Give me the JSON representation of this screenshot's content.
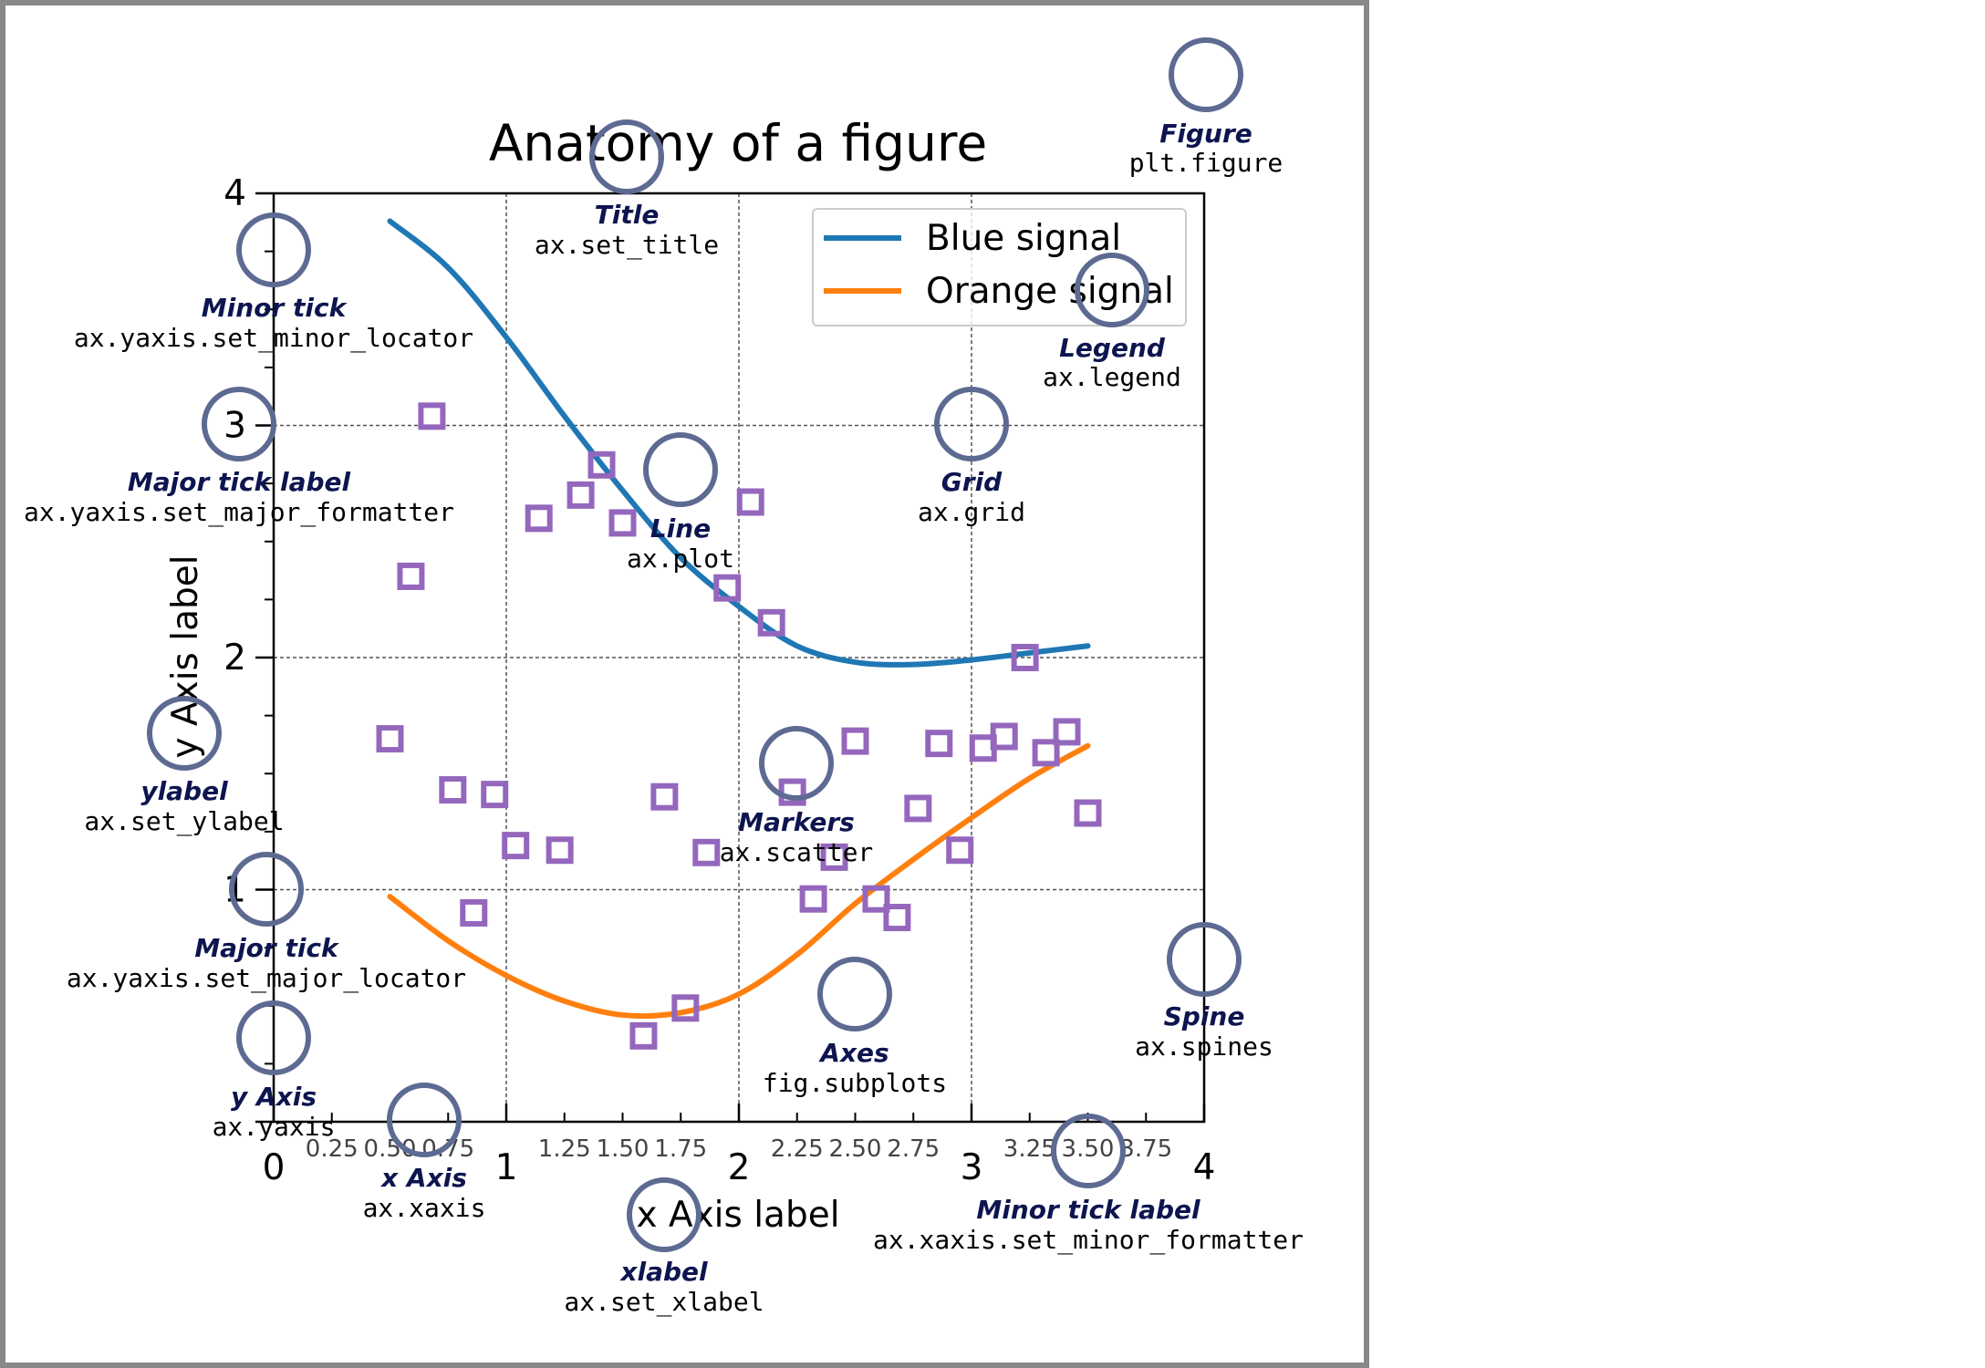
{
  "colors": {
    "blue_signal": "#1f77b4",
    "orange_signal": "#ff7f0e",
    "markers": "#9467bd",
    "annotation_circle": "#5d6a92",
    "annotation_title": "#0d1550",
    "frame_border": "#888888"
  },
  "chart_data": {
    "type": "line",
    "title": "Anatomy of a figure",
    "xlabel": "x Axis label",
    "ylabel": "y Axis label",
    "xlim": [
      0,
      4
    ],
    "ylim": [
      0,
      4
    ],
    "grid": true,
    "legend_position": "top-right",
    "major_ticks": {
      "x": [
        0,
        1,
        2,
        3,
        4
      ],
      "y": [
        0,
        1,
        2,
        3,
        4
      ],
      "x_labels": [
        "0",
        "1",
        "2",
        "3",
        "4"
      ],
      "y_labels": [
        "",
        "1",
        "2",
        "3",
        "4"
      ]
    },
    "minor_ticks": {
      "x": [
        0.25,
        0.5,
        0.75,
        1.25,
        1.5,
        1.75,
        2.25,
        2.5,
        2.75,
        3.25,
        3.5,
        3.75
      ],
      "x_labels": [
        "0.25",
        "0.50",
        "0.75",
        "1.25",
        "1.50",
        "1.75",
        "2.25",
        "2.50",
        "2.75",
        "3.25",
        "3.50",
        "3.75"
      ],
      "y": [
        0.25,
        0.5,
        0.75,
        1.25,
        1.5,
        1.75,
        2.25,
        2.5,
        2.75,
        3.25,
        3.5,
        3.75
      ]
    },
    "series": [
      {
        "name": "Blue signal",
        "kind": "line",
        "color": "#1f77b4",
        "x": [
          0.5,
          0.75,
          1.0,
          1.25,
          1.5,
          1.75,
          2.0,
          2.25,
          2.5,
          2.75,
          3.0,
          3.25,
          3.5
        ],
        "y": [
          3.88,
          3.68,
          3.38,
          3.04,
          2.72,
          2.43,
          2.22,
          2.05,
          1.98,
          1.97,
          1.99,
          2.02,
          2.05
        ]
      },
      {
        "name": "Orange signal",
        "kind": "line",
        "color": "#ff7f0e",
        "x": [
          0.5,
          0.75,
          1.0,
          1.25,
          1.5,
          1.75,
          2.0,
          2.25,
          2.5,
          2.75,
          3.0,
          3.25,
          3.5
        ],
        "y": [
          0.97,
          0.78,
          0.63,
          0.52,
          0.46,
          0.47,
          0.55,
          0.72,
          0.94,
          1.13,
          1.31,
          1.48,
          1.62
        ]
      },
      {
        "kind": "scatter",
        "marker": "square",
        "color": "#9467bd",
        "x": [
          0.5,
          0.59,
          0.68,
          0.77,
          0.86,
          0.95,
          1.04,
          1.14,
          1.23,
          1.32,
          1.41,
          1.5,
          1.59,
          1.68,
          1.77,
          1.86,
          1.95,
          2.05,
          2.14,
          2.23,
          2.32,
          2.41,
          2.5,
          2.59,
          2.68,
          2.77,
          2.86,
          2.95,
          3.05,
          3.14,
          3.23,
          3.32,
          3.41,
          3.5
        ],
        "y": [
          1.65,
          2.35,
          3.04,
          1.43,
          0.9,
          1.41,
          1.19,
          2.6,
          1.17,
          2.7,
          2.83,
          2.58,
          0.37,
          1.4,
          0.49,
          1.16,
          2.3,
          2.67,
          2.15,
          1.42,
          0.96,
          1.14,
          1.64,
          0.96,
          0.88,
          1.35,
          1.63,
          1.17,
          1.61,
          1.66,
          2.0,
          1.59,
          1.68,
          1.33
        ]
      }
    ]
  },
  "legend": {
    "items": [
      "Blue signal",
      "Orange signal"
    ]
  },
  "annotations": [
    {
      "id": "figure",
      "label": "Figure",
      "code": "plt.figure"
    },
    {
      "id": "title",
      "label": "Title",
      "code": "ax.set_title"
    },
    {
      "id": "legend",
      "label": "Legend",
      "code": "ax.legend"
    },
    {
      "id": "minor-tick",
      "label": "Minor tick",
      "code": "ax.yaxis.set_minor_locator"
    },
    {
      "id": "major-tick-label",
      "label": "Major tick label",
      "code": "ax.yaxis.set_major_formatter"
    },
    {
      "id": "line",
      "label": "Line",
      "code": "ax.plot"
    },
    {
      "id": "grid",
      "label": "Grid",
      "code": "ax.grid"
    },
    {
      "id": "ylabel",
      "label": "ylabel",
      "code": "ax.set_ylabel"
    },
    {
      "id": "markers",
      "label": "Markers",
      "code": "ax.scatter"
    },
    {
      "id": "major-tick",
      "label": "Major tick",
      "code": "ax.yaxis.set_major_locator"
    },
    {
      "id": "spine",
      "label": "Spine",
      "code": "ax.spines"
    },
    {
      "id": "axes",
      "label": "Axes",
      "code": "fig.subplots"
    },
    {
      "id": "y-axis",
      "label": "y Axis",
      "code": "ax.yaxis"
    },
    {
      "id": "x-axis",
      "label": "x Axis",
      "code": "ax.xaxis"
    },
    {
      "id": "minor-tick-label",
      "label": "Minor tick label",
      "code": "ax.xaxis.set_minor_formatter"
    },
    {
      "id": "xlabel",
      "label": "xlabel",
      "code": "ax.set_xlabel"
    }
  ]
}
